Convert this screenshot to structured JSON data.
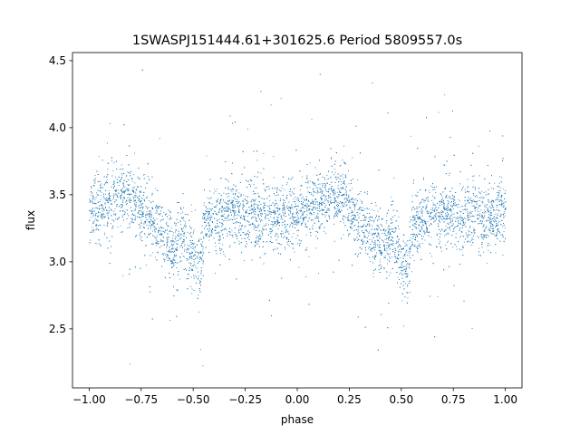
{
  "chart_data": {
    "type": "scatter",
    "title": "1SWASPJ151444.61+301625.6 Period 5809557.0s",
    "xlabel": "phase",
    "ylabel": "flux",
    "xlim": [
      -1.08,
      1.08
    ],
    "ylim": [
      2.06,
      4.56
    ],
    "xticks": [
      -1.0,
      -0.75,
      -0.5,
      -0.25,
      0.0,
      0.25,
      0.5,
      0.75,
      1.0
    ],
    "xtick_labels": [
      "−1.00",
      "−0.75",
      "−0.50",
      "−0.25",
      "0.00",
      "0.25",
      "0.50",
      "0.75",
      "1.00"
    ],
    "yticks": [
      2.5,
      3.0,
      3.5,
      4.0,
      4.5
    ],
    "ytick_labels": [
      "2.5",
      "3.0",
      "3.5",
      "4.0",
      "4.5"
    ],
    "grid": false,
    "legend": "none",
    "point_color": "#1f77b4",
    "series": [
      {
        "x": [
          -1.0,
          -0.95,
          -0.9,
          -0.85,
          -0.82,
          -0.8,
          -0.75,
          -0.7,
          -0.65,
          -0.6,
          -0.57,
          -0.55,
          -0.5,
          -0.47,
          -0.45,
          -0.4,
          -0.35,
          -0.3,
          -0.25,
          -0.2,
          -0.15,
          -0.1,
          -0.05,
          0.0,
          0.05,
          0.1,
          0.15,
          0.18,
          0.2,
          0.25,
          0.3,
          0.35,
          0.4,
          0.43,
          0.45,
          0.5,
          0.53,
          0.55,
          0.6,
          0.65,
          0.7,
          0.75,
          0.8,
          0.85,
          0.9,
          0.95,
          1.0
        ],
        "y": [
          3.38,
          3.4,
          3.42,
          3.48,
          3.5,
          3.48,
          3.4,
          3.3,
          3.22,
          3.1,
          3.15,
          3.22,
          3.02,
          2.95,
          3.25,
          3.32,
          3.35,
          3.36,
          3.35,
          3.36,
          3.34,
          3.32,
          3.34,
          3.38,
          3.4,
          3.42,
          3.48,
          3.5,
          3.48,
          3.4,
          3.3,
          3.22,
          3.1,
          3.15,
          3.22,
          3.02,
          2.95,
          3.25,
          3.32,
          3.35,
          3.36,
          3.35,
          3.36,
          3.34,
          3.32,
          3.34,
          3.38
        ]
      }
    ]
  }
}
